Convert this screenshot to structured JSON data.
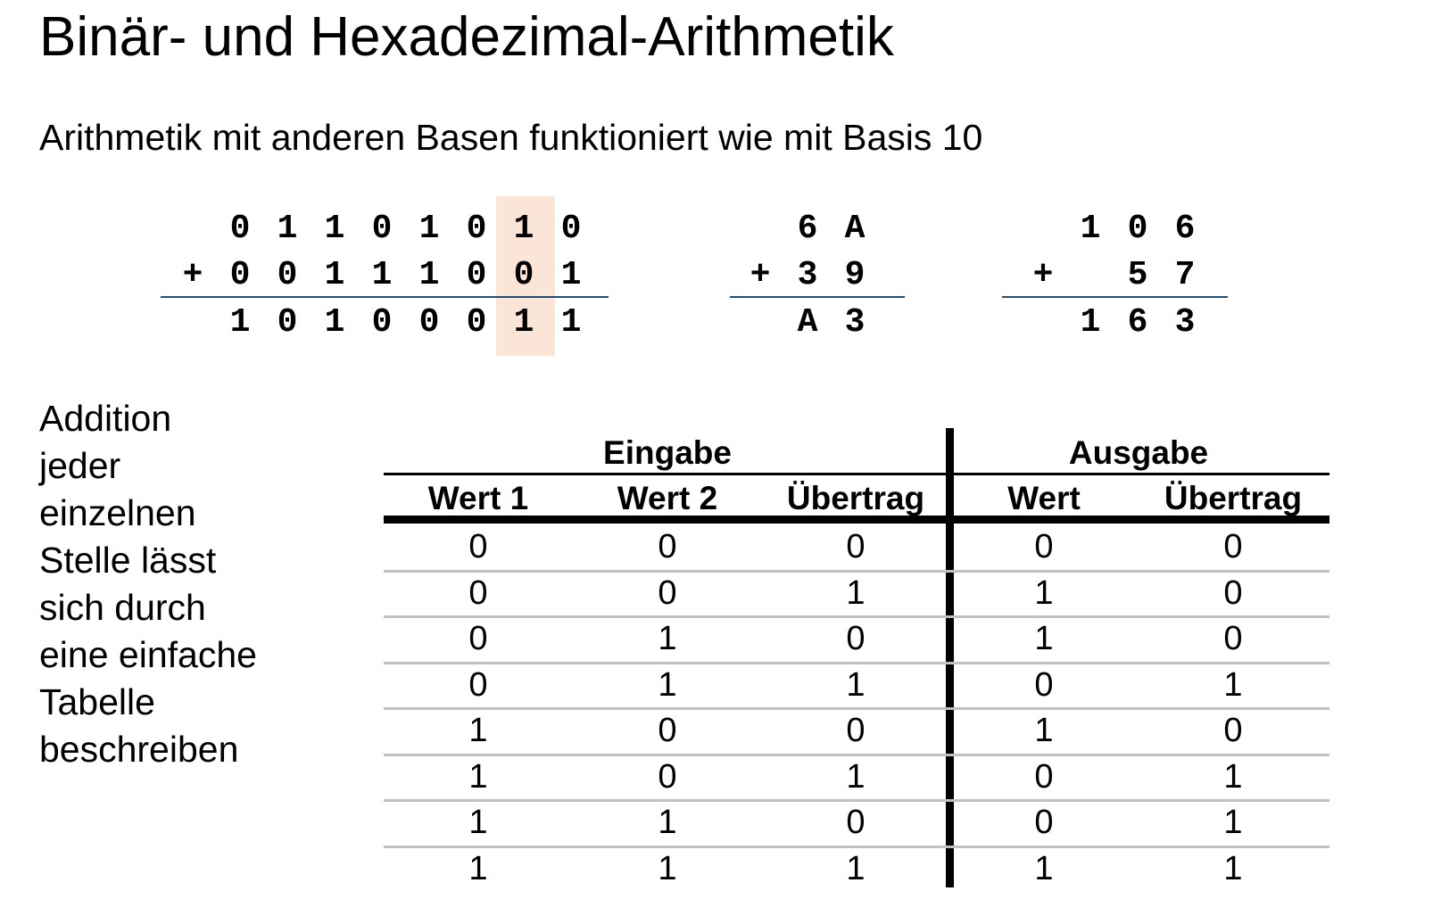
{
  "title": "Binär- und Hexadezimal-Arithmetik",
  "subtitle": "Arithmetik mit anderen Basen funktioniert wie mit Basis 10",
  "binary_sum": {
    "row1": [
      "",
      "0",
      "1",
      "1",
      "0",
      "1",
      "0",
      "1",
      "0"
    ],
    "row2": [
      "+",
      "0",
      "0",
      "1",
      "1",
      "1",
      "0",
      "0",
      "1"
    ],
    "result": [
      "",
      "1",
      "0",
      "1",
      "0",
      "0",
      "0",
      "1",
      "1"
    ]
  },
  "hex_sum": {
    "row1": [
      "",
      "6",
      "A"
    ],
    "row2": [
      "+",
      "3",
      "9"
    ],
    "result": [
      "",
      "A",
      "3"
    ]
  },
  "dec_sum": {
    "row1": [
      "",
      "1",
      "0",
      "6"
    ],
    "row2": [
      "+",
      "",
      "5",
      "7"
    ],
    "result": [
      "",
      "1",
      "6",
      "3"
    ]
  },
  "description": [
    "Addition",
    "jeder",
    "einzelnen",
    "Stelle lässt",
    "sich durch",
    "eine einfache",
    "Tabelle",
    "beschreiben"
  ],
  "table": {
    "group_input": "Eingabe",
    "group_output": "Ausgabe",
    "headers": [
      "Wert 1",
      "Wert 2",
      "Übertrag",
      "Wert",
      "Übertrag"
    ],
    "rows": [
      [
        "0",
        "0",
        "0",
        "0",
        "0"
      ],
      [
        "0",
        "0",
        "1",
        "1",
        "0"
      ],
      [
        "0",
        "1",
        "0",
        "1",
        "0"
      ],
      [
        "0",
        "1",
        "1",
        "0",
        "1"
      ],
      [
        "1",
        "0",
        "0",
        "1",
        "0"
      ],
      [
        "1",
        "0",
        "1",
        "0",
        "1"
      ],
      [
        "1",
        "1",
        "0",
        "0",
        "1"
      ],
      [
        "1",
        "1",
        "1",
        "1",
        "1"
      ]
    ]
  },
  "colors": {
    "highlight": "#fbe5d6",
    "sum_rule": "#1f4e79",
    "row_separator": "#c0c0c0"
  }
}
